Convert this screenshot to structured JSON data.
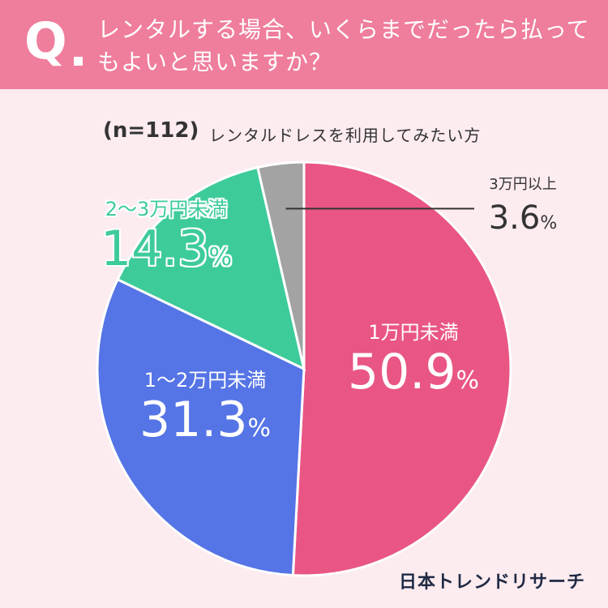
{
  "header": {
    "q_mark": "Q",
    "question": "レンタルする場合、いくらまでだったら払ってもよいと思いますか？"
  },
  "subtitle": {
    "n": "(n=112)",
    "text": "レンタルドレスを利用してみたい方"
  },
  "chart_data": {
    "type": "pie",
    "title": "レンタルする場合、いくらまでだったら払ってもよいと思いますか？",
    "categories": [
      "1万円未満",
      "1〜2万円未満",
      "2〜3万円未満",
      "3万円以上"
    ],
    "values": [
      50.9,
      31.3,
      14.3,
      3.6
    ],
    "value_labels": [
      "50.9",
      "31.3",
      "14.3",
      "3.6"
    ],
    "unit": "%",
    "colors": [
      "#e95684",
      "#5574e6",
      "#3ecb9a",
      "#a3a3a3"
    ],
    "start": "12 o'clock",
    "direction": "clockwise"
  },
  "logo": "日本トレンドリサーチ"
}
